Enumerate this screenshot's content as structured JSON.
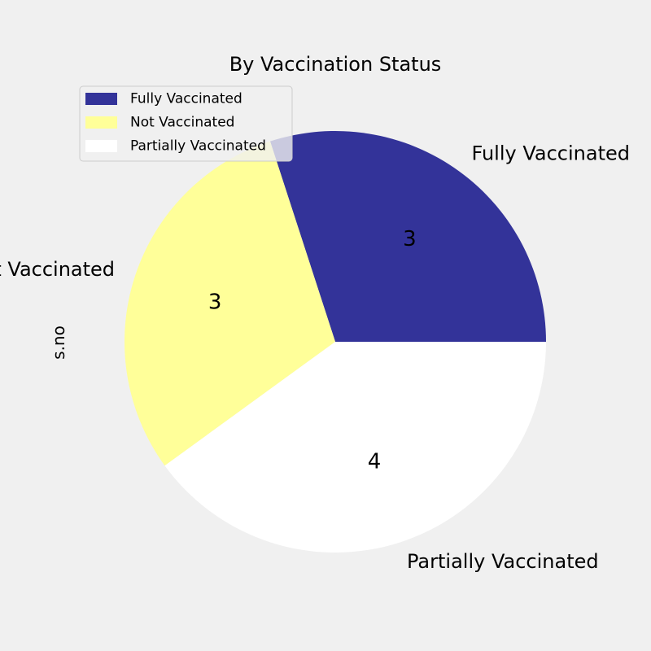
{
  "chart_data": {
    "type": "pie",
    "title": "By Vaccination Status",
    "ylabel": "s.no",
    "categories": [
      "Fully Vaccinated",
      "Not Vaccinated",
      "Partially Vaccinated"
    ],
    "values": [
      3,
      3,
      4
    ],
    "value_labels": [
      "3",
      "3",
      "4"
    ],
    "colors": [
      "#333399",
      "#ffff99",
      "#ffffff"
    ],
    "start_angle_deg": 0,
    "direction": "counterclockwise",
    "legend": {
      "placement": "upper-left",
      "entries": [
        "Fully Vaccinated",
        "Not Vaccinated",
        "Partially Vaccinated"
      ]
    },
    "grid": false
  }
}
